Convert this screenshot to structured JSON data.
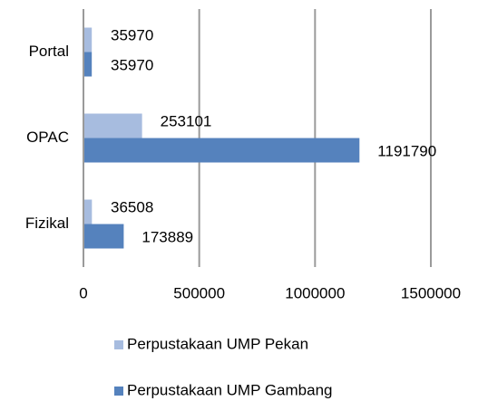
{
  "chart_data": {
    "type": "bar",
    "orientation": "horizontal",
    "categories": [
      "Portal",
      "OPAC",
      "Fizikal"
    ],
    "series": [
      {
        "name": "Perpustakaan UMP Pekan",
        "color": "#a7bcdf",
        "values": [
          35970,
          253101,
          36508
        ]
      },
      {
        "name": "Perpustakaan UMP Gambang",
        "color": "#5582bd",
        "values": [
          35970,
          1191790,
          173889
        ]
      }
    ],
    "xlim": [
      0,
      1500000
    ],
    "xticks": [
      0,
      500000,
      1000000,
      1500000
    ],
    "grid": true,
    "legend": "bottom"
  }
}
